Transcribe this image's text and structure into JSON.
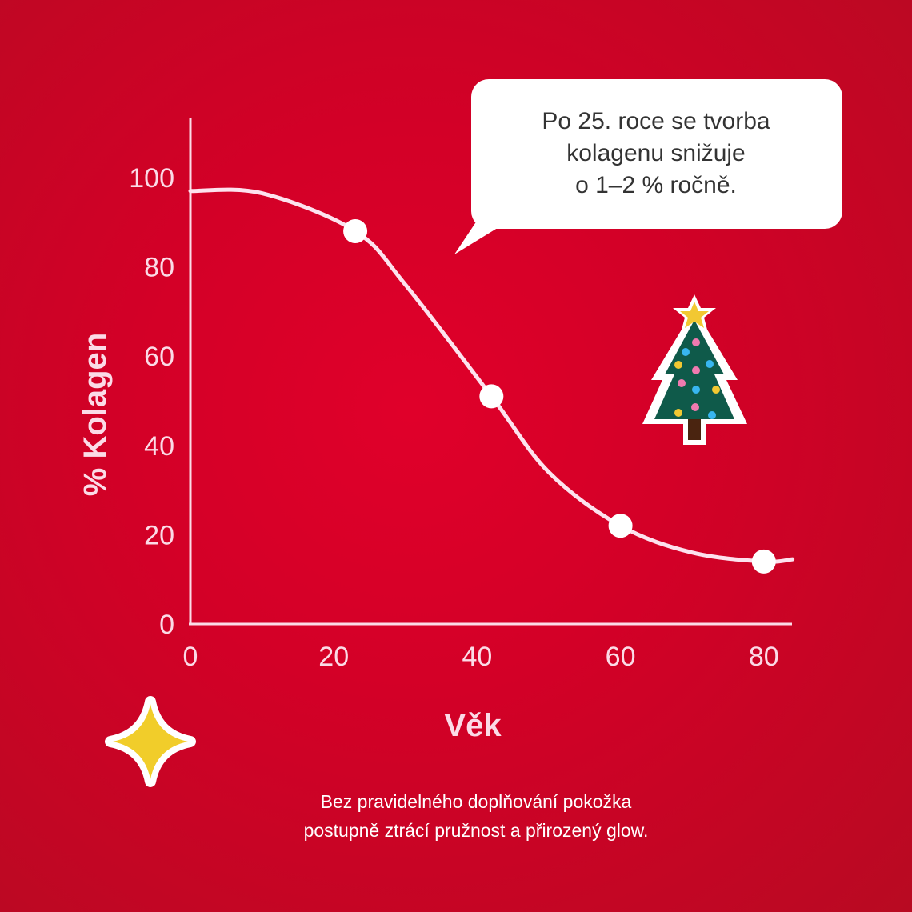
{
  "chart_data": {
    "type": "line",
    "xlabel": "Věk",
    "ylabel": "% Kolagen",
    "xlim": [
      0,
      84
    ],
    "ylim": [
      0,
      112
    ],
    "x_ticks": [
      "0",
      "20",
      "40",
      "60",
      "80"
    ],
    "y_ticks": [
      "0",
      "20",
      "40",
      "60",
      "80",
      "100"
    ],
    "grid": false,
    "curve": [
      [
        0,
        97
      ],
      [
        10,
        96.5
      ],
      [
        23,
        88
      ],
      [
        30,
        76
      ],
      [
        42,
        51
      ],
      [
        50,
        34
      ],
      [
        60,
        22
      ],
      [
        70,
        16
      ],
      [
        80,
        14
      ],
      [
        84,
        14.5
      ]
    ],
    "markers": [
      [
        23,
        88
      ],
      [
        42,
        51
      ],
      [
        60,
        22
      ],
      [
        80,
        14
      ]
    ],
    "colors": {
      "line": "#fde2ee",
      "axis": "#fbdbe7",
      "background": "#d30027"
    }
  },
  "callout": {
    "lines": [
      "Po 25. roce se tvorba",
      "kolagenu snižuje",
      "o 1–2 % ročně."
    ]
  },
  "footer": {
    "lines": [
      "Bez pravidelného doplňování pokožka",
      "postupně ztrácí pružnost a přirozený glow."
    ]
  },
  "decorations": {
    "tree": "christmas-tree-icon",
    "sparkle": "sparkle-star-icon"
  }
}
